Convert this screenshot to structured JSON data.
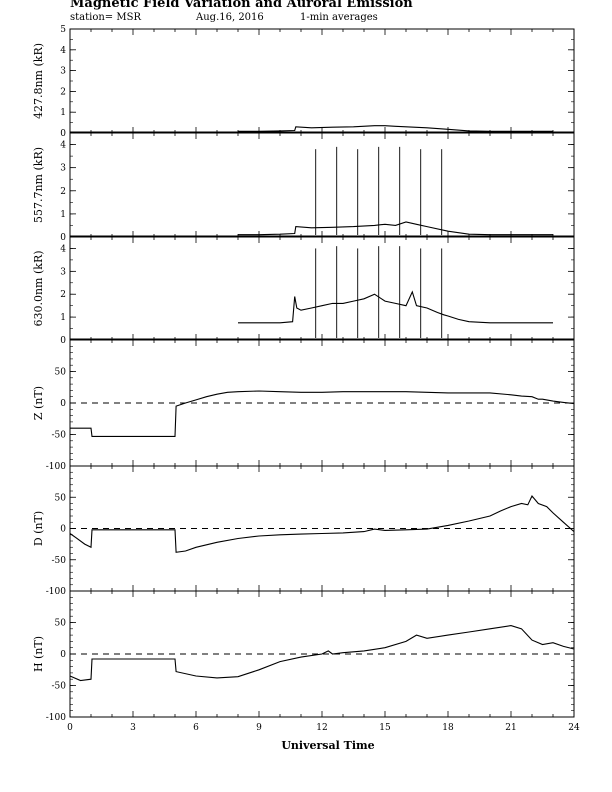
{
  "header": {
    "title": "Magnetic Field Variation and Auroral Emission",
    "station": "station= MSR",
    "date": "Aug.16, 2016",
    "averaging": "1-min averages"
  },
  "chart_data": {
    "type": "line",
    "xlabel": "Universal Time",
    "x_range": [
      0,
      24
    ],
    "x_ticks": [
      "0",
      "3",
      "6",
      "9",
      "12",
      "15",
      "18",
      "21",
      "24"
    ],
    "panels": [
      {
        "id": "p4278",
        "ylabel": "427.8nm (kR)",
        "ylim": [
          0,
          5
        ],
        "y_ticks": [
          "0",
          "1",
          "2",
          "3",
          "4",
          "5"
        ],
        "zero_line": false,
        "series": [
          {
            "x": [
              8.0,
              9.0,
              10.0,
              10.7,
              10.75,
              11.5,
              12.5,
              13.5,
              14.5,
              15.0,
              15.5,
              16.0,
              17.0,
              18.0,
              19.0,
              20.0,
              21.0,
              22.0,
              23.0
            ],
            "y": [
              0.08,
              0.08,
              0.1,
              0.12,
              0.3,
              0.25,
              0.28,
              0.3,
              0.35,
              0.35,
              0.32,
              0.3,
              0.25,
              0.18,
              0.1,
              0.08,
              0.08,
              0.08,
              0.08
            ]
          }
        ],
        "spikes": []
      },
      {
        "id": "p5577",
        "ylabel": "557.7nm (kR)",
        "ylim": [
          0,
          4.5
        ],
        "y_ticks": [
          "0",
          "1",
          "2",
          "3",
          "4"
        ],
        "zero_line": false,
        "series": [
          {
            "x": [
              8.0,
              9.0,
              10.0,
              10.7,
              10.75,
              11.5,
              12.5,
              13.5,
              14.5,
              15.0,
              15.5,
              16.0,
              16.5,
              17.0,
              18.0,
              19.0,
              20.0,
              21.0,
              22.0,
              23.0
            ],
            "y": [
              0.1,
              0.1,
              0.12,
              0.15,
              0.45,
              0.4,
              0.42,
              0.45,
              0.5,
              0.55,
              0.5,
              0.65,
              0.55,
              0.45,
              0.25,
              0.12,
              0.1,
              0.1,
              0.1,
              0.1
            ]
          }
        ],
        "spikes": [
          {
            "x": 11.7,
            "y": 3.8
          },
          {
            "x": 12.7,
            "y": 3.9
          },
          {
            "x": 13.7,
            "y": 3.8
          },
          {
            "x": 14.7,
            "y": 3.9
          },
          {
            "x": 15.7,
            "y": 3.9
          },
          {
            "x": 16.7,
            "y": 3.8
          },
          {
            "x": 17.7,
            "y": 3.8
          }
        ]
      },
      {
        "id": "p6300",
        "ylabel": "630.0nm (kR)",
        "ylim": [
          0,
          4.5
        ],
        "y_ticks": [
          "0",
          "1",
          "2",
          "3",
          "4"
        ],
        "zero_line": false,
        "series": [
          {
            "x": [
              8.0,
              9.0,
              10.0,
              10.6,
              10.7,
              10.8,
              11.0,
              11.5,
              12.0,
              12.5,
              13.0,
              13.5,
              14.0,
              14.5,
              15.0,
              15.5,
              16.0,
              16.3,
              16.5,
              17.0,
              17.5,
              17.8,
              18.0,
              18.5,
              19.0,
              20.0,
              21.0,
              22.0,
              23.0
            ],
            "y": [
              0.75,
              0.75,
              0.75,
              0.8,
              1.9,
              1.4,
              1.3,
              1.4,
              1.5,
              1.6,
              1.6,
              1.7,
              1.8,
              2.0,
              1.7,
              1.6,
              1.5,
              2.1,
              1.5,
              1.4,
              1.2,
              1.1,
              1.05,
              0.9,
              0.8,
              0.75,
              0.75,
              0.75,
              0.75
            ]
          }
        ],
        "spikes": [
          {
            "x": 11.7,
            "y": 4.0
          },
          {
            "x": 12.7,
            "y": 4.1
          },
          {
            "x": 13.7,
            "y": 4.0
          },
          {
            "x": 14.7,
            "y": 4.1
          },
          {
            "x": 15.7,
            "y": 4.1
          },
          {
            "x": 16.7,
            "y": 4.0
          },
          {
            "x": 17.7,
            "y": 4.0
          }
        ]
      },
      {
        "id": "pZ",
        "ylabel": "Z (nT)",
        "ylim": [
          -100,
          100
        ],
        "y_ticks": [
          "-100",
          "-50",
          "0",
          "50"
        ],
        "zero_line": true,
        "series": [
          {
            "x": [
              0,
              1.0,
              1.05,
              5.0,
              5.05,
              5.5,
              6.0,
              6.5,
              7.0,
              7.5,
              8.0,
              9.0,
              10.0,
              11.0,
              12.0,
              13.0,
              14.0,
              15.0,
              16.0,
              17.0,
              18.0,
              19.0,
              20.0,
              21.0,
              21.5,
              22.0,
              22.3,
              22.5,
              23.0,
              23.5,
              24.0
            ],
            "y": [
              -40,
              -40,
              -53,
              -53,
              -5,
              0,
              5,
              10,
              14,
              17,
              18,
              19,
              18,
              17,
              17,
              18,
              18,
              18,
              18,
              17,
              16,
              16,
              16,
              13,
              11,
              10,
              6,
              6,
              3,
              1,
              -1
            ]
          }
        ],
        "spikes": []
      },
      {
        "id": "pD",
        "ylabel": "D (nT)",
        "ylim": [
          -100,
          100
        ],
        "y_ticks": [
          "-100",
          "-50",
          "0",
          "50"
        ],
        "zero_line": true,
        "series": [
          {
            "x": [
              0,
              0.3,
              0.7,
              1.0,
              1.05,
              5.0,
              5.05,
              5.5,
              6.0,
              7.0,
              8.0,
              9.0,
              10.0,
              11.0,
              12.0,
              13.0,
              14.0,
              14.5,
              15.0,
              16.0,
              17.0,
              18.0,
              19.0,
              20.0,
              20.5,
              21.0,
              21.5,
              21.8,
              22.0,
              22.3,
              22.7,
              23.0,
              23.5,
              24.0
            ],
            "y": [
              -8,
              -15,
              -25,
              -30,
              -2,
              -2,
              -38,
              -36,
              -30,
              -22,
              -16,
              -12,
              -10,
              -9,
              -8,
              -7,
              -5,
              -1,
              -3,
              -2,
              -1,
              5,
              12,
              20,
              28,
              35,
              40,
              38,
              52,
              40,
              35,
              25,
              10,
              -5
            ]
          }
        ],
        "spikes": []
      },
      {
        "id": "pH",
        "ylabel": "H (nT)",
        "ylim": [
          -100,
          100
        ],
        "y_ticks": [
          "-100",
          "-50",
          "0",
          "50"
        ],
        "zero_line": true,
        "series": [
          {
            "x": [
              0,
              0.5,
              1.0,
              1.05,
              5.0,
              5.05,
              6.0,
              7.0,
              8.0,
              9.0,
              10.0,
              11.0,
              12.0,
              12.3,
              12.5,
              13.0,
              14.0,
              15.0,
              16.0,
              16.5,
              17.0,
              18.0,
              19.0,
              20.0,
              21.0,
              21.5,
              22.0,
              22.5,
              23.0,
              23.5,
              24.0
            ],
            "y": [
              -35,
              -42,
              -40,
              -8,
              -8,
              -28,
              -35,
              -38,
              -36,
              -25,
              -12,
              -5,
              0,
              5,
              0,
              2,
              5,
              10,
              20,
              30,
              25,
              30,
              35,
              40,
              45,
              40,
              22,
              15,
              18,
              12,
              8
            ]
          }
        ],
        "spikes": []
      }
    ]
  }
}
